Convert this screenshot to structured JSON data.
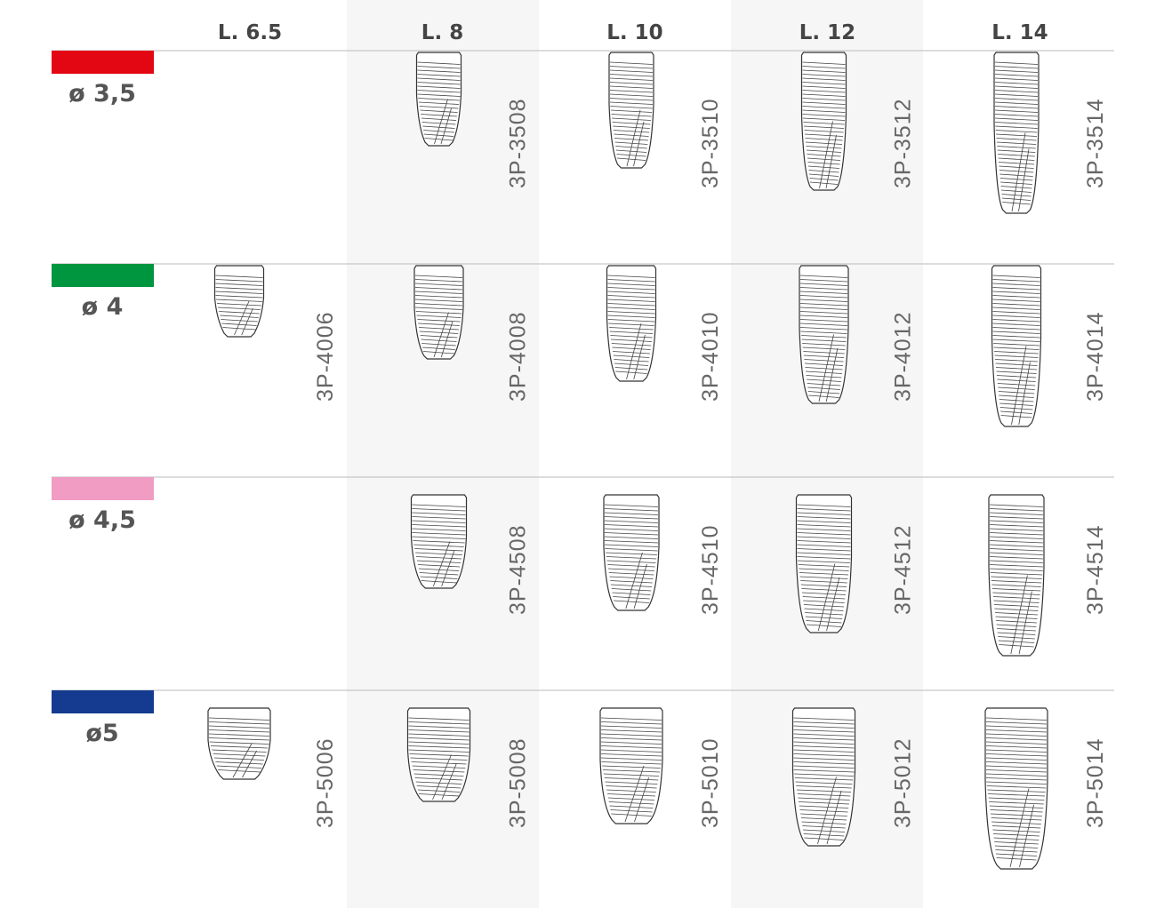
{
  "columns": [
    "L. 6.5",
    "L. 8",
    "L. 10",
    "L. 12",
    "L. 14"
  ],
  "rows": [
    {
      "label": "ø 3,5",
      "color": "#e30613",
      "codes": [
        null,
        "3P-3508",
        "3P-3510",
        "3P-3512",
        "3P-3514"
      ]
    },
    {
      "label": "ø 4",
      "color": "#00963f",
      "codes": [
        "3P-4006",
        "3P-4008",
        "3P-4010",
        "3P-4012",
        "3P-4014"
      ]
    },
    {
      "label": "ø 4,5",
      "color": "#f09cc3",
      "codes": [
        null,
        "3P-4508",
        "3P-4510",
        "3P-4512",
        "3P-4514"
      ]
    },
    {
      "label": "ø5",
      "color": "#143b8f",
      "codes": [
        "3P-5006",
        "3P-5008",
        "3P-5010",
        "3P-5012",
        "3P-5014"
      ]
    }
  ]
}
